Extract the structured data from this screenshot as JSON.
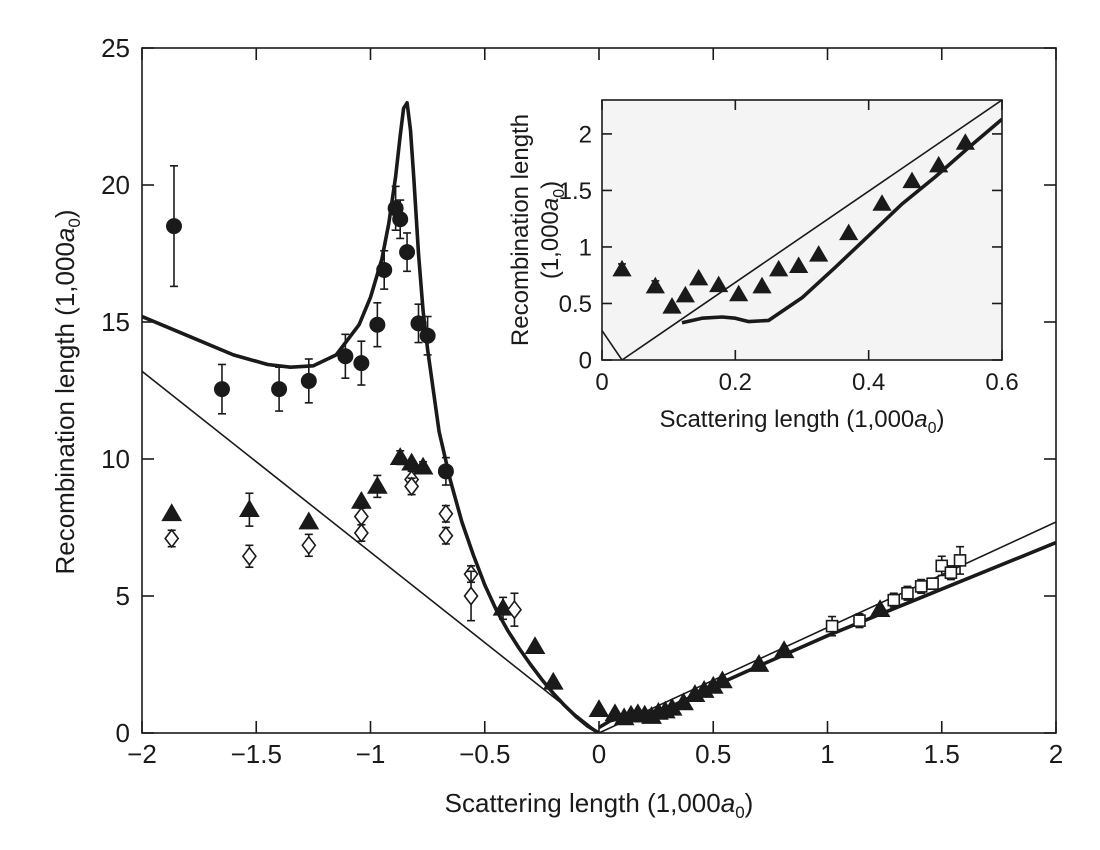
{
  "chart_data": [
    {
      "id": "main",
      "type": "scatter",
      "xlabel": "Scattering length (1,000a0)",
      "ylabel": "Recombination length (1,000a0)",
      "xlim": [
        -2,
        2
      ],
      "ylim": [
        0,
        25
      ],
      "xticks": [
        "−2",
        "−1.5",
        "−1",
        "−0.5",
        "0",
        "0.5",
        "1",
        "1.5",
        "2"
      ],
      "yticks": [
        "0",
        "5",
        "10",
        "15",
        "20",
        "25"
      ],
      "xtick_values": [
        -2,
        -1.5,
        -1,
        -0.5,
        0,
        0.5,
        1,
        1.5,
        2
      ],
      "ytick_values": [
        0,
        5,
        10,
        15,
        20,
        25
      ],
      "series": [
        {
          "marker": "circle-filled",
          "points": [
            {
              "x": -1.86,
              "y": 18.5,
              "err": 2.2
            },
            {
              "x": -1.65,
              "y": 12.55,
              "err": 0.9
            },
            {
              "x": -1.4,
              "y": 12.55,
              "err": 0.8
            },
            {
              "x": -1.27,
              "y": 12.85,
              "err": 0.8
            },
            {
              "x": -1.11,
              "y": 13.75,
              "err": 0.8
            },
            {
              "x": -1.04,
              "y": 13.5,
              "err": 0.8
            },
            {
              "x": -0.97,
              "y": 14.9,
              "err": 0.8
            },
            {
              "x": -0.94,
              "y": 16.9,
              "err": 0.7
            },
            {
              "x": -0.89,
              "y": 19.15,
              "err": 0.8
            },
            {
              "x": -0.87,
              "y": 18.75,
              "err": 0.7
            },
            {
              "x": -0.84,
              "y": 17.55,
              "err": 0.7
            },
            {
              "x": -0.79,
              "y": 14.95,
              "err": 0.7
            },
            {
              "x": -0.75,
              "y": 14.5,
              "err": 0.7
            },
            {
              "x": -0.67,
              "y": 9.55,
              "err": 0.5
            }
          ]
        },
        {
          "marker": "triangle-filled",
          "points": [
            {
              "x": -1.87,
              "y": 8.0,
              "err": 0
            },
            {
              "x": -1.53,
              "y": 8.15,
              "err": 0.6
            },
            {
              "x": -1.27,
              "y": 7.7,
              "err": 0
            },
            {
              "x": -1.04,
              "y": 8.45,
              "err": 0
            },
            {
              "x": -0.97,
              "y": 9.0,
              "err": 0.4
            },
            {
              "x": -0.87,
              "y": 10.05,
              "err": 0.25
            },
            {
              "x": -0.82,
              "y": 9.85,
              "err": 0
            },
            {
              "x": -0.77,
              "y": 9.7,
              "err": 0.2
            },
            {
              "x": -0.42,
              "y": 4.55,
              "err": 0.4
            },
            {
              "x": -0.28,
              "y": 3.15,
              "err": 0
            },
            {
              "x": -0.2,
              "y": 1.85,
              "err": 0
            },
            {
              "x": 0.0,
              "y": 0.85,
              "err": 0
            },
            {
              "x": 0.07,
              "y": 0.7,
              "err": 0
            },
            {
              "x": 0.11,
              "y": 0.55,
              "err": 0
            },
            {
              "x": 0.14,
              "y": 0.65,
              "err": 0
            },
            {
              "x": 0.17,
              "y": 0.7,
              "err": 0
            },
            {
              "x": 0.2,
              "y": 0.65,
              "err": 0
            },
            {
              "x": 0.23,
              "y": 0.6,
              "err": 0
            },
            {
              "x": 0.26,
              "y": 0.75,
              "err": 0
            },
            {
              "x": 0.29,
              "y": 0.8,
              "err": 0
            },
            {
              "x": 0.32,
              "y": 0.9,
              "err": 0
            },
            {
              "x": 0.37,
              "y": 1.1,
              "err": 0
            },
            {
              "x": 0.42,
              "y": 1.4,
              "err": 0
            },
            {
              "x": 0.46,
              "y": 1.55,
              "err": 0
            },
            {
              "x": 0.5,
              "y": 1.7,
              "err": 0
            },
            {
              "x": 0.54,
              "y": 1.9,
              "err": 0
            },
            {
              "x": 0.7,
              "y": 2.5,
              "err": 0
            },
            {
              "x": 0.81,
              "y": 3.0,
              "err": 0
            },
            {
              "x": 1.23,
              "y": 4.5,
              "err": 0
            }
          ]
        },
        {
          "marker": "diamond-open",
          "points": [
            {
              "x": -1.87,
              "y": 7.1,
              "err": 0.3
            },
            {
              "x": -1.53,
              "y": 6.45,
              "err": 0.4
            },
            {
              "x": -1.27,
              "y": 6.85,
              "err": 0.4
            },
            {
              "x": -1.04,
              "y": 7.9,
              "err": 0.3
            },
            {
              "x": -1.04,
              "y": 7.3,
              "err": 0.3
            },
            {
              "x": -0.82,
              "y": 9.25,
              "err": 0.3
            },
            {
              "x": -0.82,
              "y": 9.0,
              "err": 0.3
            },
            {
              "x": -0.67,
              "y": 8.0,
              "err": 0.3
            },
            {
              "x": -0.67,
              "y": 7.2,
              "err": 0.3
            },
            {
              "x": -0.56,
              "y": 5.8,
              "err": 0.3
            },
            {
              "x": -0.56,
              "y": 5.0,
              "err": 0.9
            },
            {
              "x": -0.37,
              "y": 4.5,
              "err": 0.6
            }
          ]
        },
        {
          "marker": "square-open",
          "points": [
            {
              "x": 1.02,
              "y": 3.9,
              "err": 0.35
            },
            {
              "x": 1.14,
              "y": 4.1,
              "err": 0.25
            },
            {
              "x": 1.29,
              "y": 4.85,
              "err": 0.25
            },
            {
              "x": 1.35,
              "y": 5.1,
              "err": 0.25
            },
            {
              "x": 1.41,
              "y": 5.35,
              "err": 0.25
            },
            {
              "x": 1.46,
              "y": 5.45,
              "err": 0.2
            },
            {
              "x": 1.5,
              "y": 6.1,
              "err": 0.35
            },
            {
              "x": 1.54,
              "y": 5.85,
              "err": 0.25
            },
            {
              "x": 1.58,
              "y": 6.3,
              "err": 0.5
            }
          ]
        }
      ],
      "curves": [
        {
          "style": "thin",
          "x": [
            -2.0,
            0.0,
            2.0
          ],
          "y": [
            13.2,
            0.0,
            7.7
          ]
        },
        {
          "style": "thick",
          "x": [
            -2.0,
            -1.8,
            -1.6,
            -1.45,
            -1.35,
            -1.25,
            -1.15,
            -1.05,
            -1.0,
            -0.95,
            -0.92,
            -0.89,
            -0.87,
            -0.855,
            -0.84,
            -0.825,
            -0.81,
            -0.79,
            -0.77,
            -0.75,
            -0.72,
            -0.7,
            -0.65,
            -0.6,
            -0.55,
            -0.5,
            -0.45,
            -0.4,
            -0.35,
            -0.3,
            -0.25,
            -0.2,
            -0.15,
            -0.1,
            -0.05,
            0.0
          ],
          "y": [
            15.2,
            14.5,
            13.8,
            13.45,
            13.35,
            13.4,
            13.8,
            14.9,
            15.9,
            17.3,
            18.6,
            20.3,
            21.8,
            22.8,
            23.0,
            22.0,
            20.2,
            17.5,
            15.4,
            14.0,
            12.2,
            11.0,
            9.2,
            7.7,
            6.5,
            5.4,
            4.5,
            3.75,
            3.1,
            2.5,
            1.95,
            1.45,
            1.0,
            0.6,
            0.25,
            0.0
          ]
        },
        {
          "style": "thick",
          "x": [
            0.0,
            0.05,
            0.1,
            0.15,
            0.2,
            0.25,
            0.3,
            0.4,
            0.5,
            0.7,
            1.0,
            1.5,
            2.0
          ],
          "y": [
            0.2,
            0.45,
            0.55,
            0.55,
            0.58,
            0.7,
            0.9,
            1.3,
            1.7,
            2.45,
            3.55,
            5.25,
            6.95
          ]
        }
      ]
    },
    {
      "id": "inset",
      "type": "scatter",
      "xlabel": "Scattering length (1,000a0)",
      "ylabel": "Recombination length (1,000a0)",
      "xlim": [
        0,
        0.6
      ],
      "ylim": [
        0,
        2.3
      ],
      "xticks": [
        "0",
        "0.2",
        "0.4",
        "0.6"
      ],
      "yticks": [
        "0",
        "0.5",
        "1",
        "1.5",
        "2"
      ],
      "xtick_values": [
        0,
        0.2,
        0.4,
        0.6
      ],
      "ytick_values": [
        0,
        0.5,
        1,
        1.5,
        2
      ],
      "series": [
        {
          "marker": "triangle-filled",
          "points": [
            {
              "x": 0.03,
              "y": 0.8,
              "err": 0.05
            },
            {
              "x": 0.08,
              "y": 0.65,
              "err": 0.05
            },
            {
              "x": 0.105,
              "y": 0.47,
              "err": 0
            },
            {
              "x": 0.125,
              "y": 0.57,
              "err": 0
            },
            {
              "x": 0.145,
              "y": 0.72,
              "err": 0
            },
            {
              "x": 0.175,
              "y": 0.66,
              "err": 0
            },
            {
              "x": 0.205,
              "y": 0.58,
              "err": 0
            },
            {
              "x": 0.24,
              "y": 0.65,
              "err": 0
            },
            {
              "x": 0.265,
              "y": 0.8,
              "err": 0
            },
            {
              "x": 0.295,
              "y": 0.83,
              "err": 0
            },
            {
              "x": 0.325,
              "y": 0.93,
              "err": 0
            },
            {
              "x": 0.37,
              "y": 1.12,
              "err": 0
            },
            {
              "x": 0.42,
              "y": 1.38,
              "err": 0
            },
            {
              "x": 0.465,
              "y": 1.58,
              "err": 0
            },
            {
              "x": 0.505,
              "y": 1.72,
              "err": 0
            },
            {
              "x": 0.545,
              "y": 1.92,
              "err": 0
            }
          ]
        }
      ],
      "curves": [
        {
          "style": "thin",
          "x": [
            0.0,
            0.03,
            0.6
          ],
          "y": [
            0.26,
            0.0,
            2.3
          ]
        },
        {
          "style": "thick",
          "x": [
            0.12,
            0.15,
            0.18,
            0.2,
            0.22,
            0.25,
            0.3,
            0.35,
            0.4,
            0.45,
            0.5,
            0.55,
            0.6
          ],
          "y": [
            0.33,
            0.37,
            0.38,
            0.37,
            0.34,
            0.35,
            0.55,
            0.82,
            1.1,
            1.38,
            1.62,
            1.88,
            2.13
          ]
        }
      ]
    }
  ]
}
